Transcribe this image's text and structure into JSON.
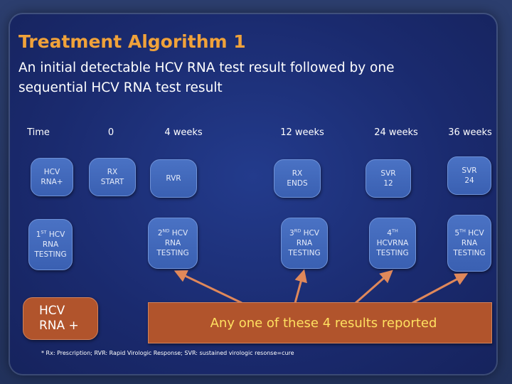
{
  "title": "Treatment Algorithm 1",
  "subtitle": "An initial detectable HCV RNA test result followed by one sequential HCV RNA test result",
  "headers": [
    "Time",
    "0",
    "4 weeks",
    "12 weeks",
    "24 weeks",
    "36 weeks"
  ],
  "row1": {
    "hcv_rna_plus": "HCV RNA+",
    "rx_start": "RX START",
    "rvr": "RVR",
    "rx_ends": "RX ENDS",
    "svr12": "SVR 12",
    "svr24": "SVR 24"
  },
  "row2": {
    "t1": {
      "num": "1",
      "sup": "ST",
      "rest": " HCV RNA TESTING"
    },
    "t2": {
      "num": "2",
      "sup": "ND",
      "rest": " HCV RNA TESTING"
    },
    "t3": {
      "num": "3",
      "sup": "RD",
      "rest": " HCV RNA TESTING"
    },
    "t4": {
      "num": "4",
      "sup": "TH",
      "rest": " HCVRNA TESTING"
    },
    "t5": {
      "num": "5",
      "sup": "TH",
      "rest": " HCV RNA TESTING"
    }
  },
  "hcv_rna_plus_box": {
    "line1": "HCV",
    "line2": "RNA +"
  },
  "results_box": "Any one of these 4 results reported",
  "footnote": "* Rx: Prescription; RVR: Rapid Virologic Response; SVR: sustained virologic resonse=cure",
  "colors": {
    "title": "#f0a23a",
    "cell": "#4a72c4",
    "orange_box": "#b1542c",
    "result_text": "#ffe060",
    "arrow": "#e0885a"
  }
}
